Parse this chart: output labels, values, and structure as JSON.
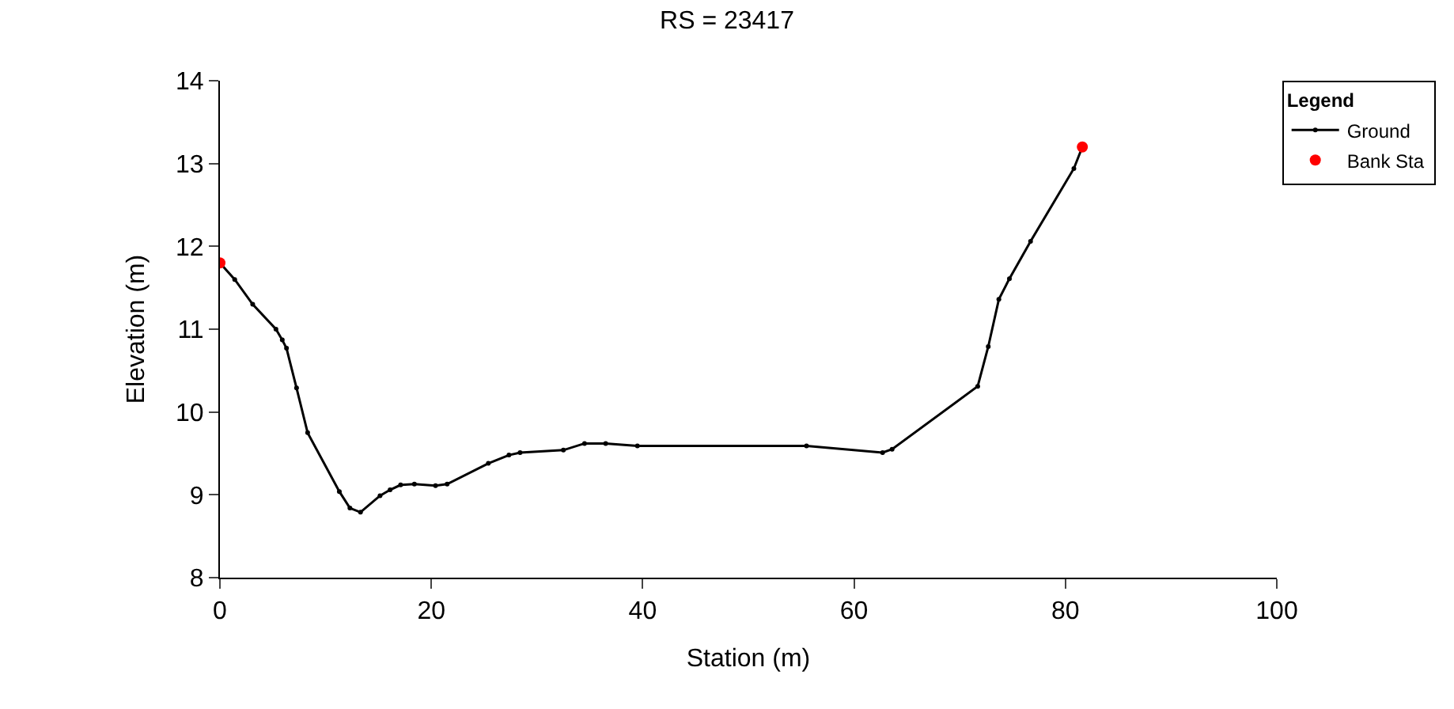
{
  "chart_data": {
    "type": "line",
    "title": "RS = 23417",
    "xlabel": "Station (m)",
    "ylabel": "Elevation (m)",
    "legend_title": "Legend",
    "xlim": [
      0,
      100
    ],
    "xticks": [
      0,
      20,
      40,
      60,
      80,
      100
    ],
    "ylim": [
      8,
      14
    ],
    "yticks": [
      8,
      9,
      10,
      11,
      12,
      13,
      14
    ],
    "legend": "top right",
    "series": [
      {
        "name": "Ground",
        "color": "#000000",
        "marker": "circle",
        "x": [
          0,
          1.4,
          3.1,
          5.3,
          5.9,
          6.3,
          7.25,
          8.3,
          11.3,
          12.3,
          13.3,
          15.15,
          16.1,
          17.1,
          18.4,
          20.4,
          21.5,
          25.4,
          27.35,
          28.4,
          32.5,
          34.5,
          36.5,
          39.5,
          55.5,
          62.7,
          63.6,
          71.7,
          72.7,
          73.7,
          74.7,
          76.7,
          80.8,
          81.6
        ],
        "values": [
          11.8,
          11.6,
          11.3,
          11.0,
          10.87,
          10.77,
          10.29,
          9.75,
          9.04,
          8.84,
          8.79,
          8.99,
          9.06,
          9.12,
          9.13,
          9.11,
          9.13,
          9.38,
          9.48,
          9.51,
          9.54,
          9.62,
          9.62,
          9.59,
          9.59,
          9.51,
          9.55,
          10.31,
          10.79,
          11.36,
          11.61,
          12.06,
          12.94,
          13.2
        ]
      },
      {
        "name": "Bank Sta",
        "type": "scatter",
        "color": "#ff0000",
        "marker": "circle",
        "x": [
          0,
          81.6
        ],
        "values": [
          11.8,
          13.2
        ]
      }
    ]
  }
}
